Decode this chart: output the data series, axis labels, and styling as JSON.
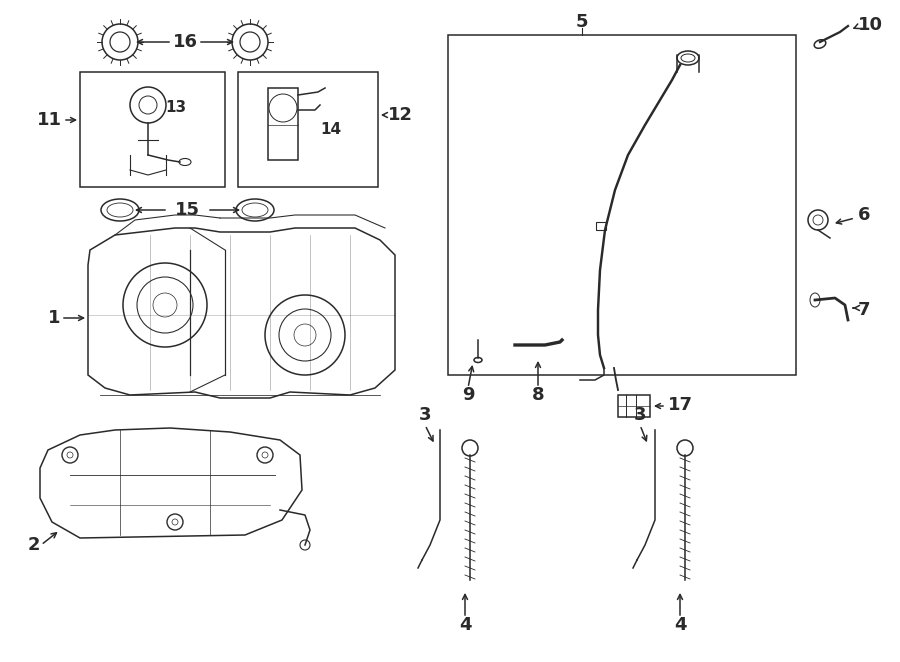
{
  "bg_color": "#ffffff",
  "line_color": "#2a2a2a",
  "fig_width": 9.0,
  "fig_height": 6.62,
  "dpi": 100,
  "lw": 1.1
}
